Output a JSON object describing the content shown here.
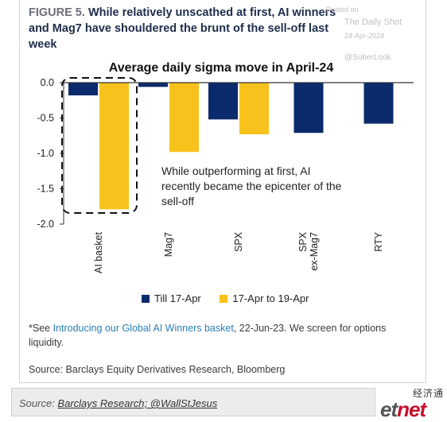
{
  "figure": {
    "label": "FIGURE 5.",
    "title": "While relatively unscathed at first, AI winners and Mag7 have shouldered the brunt of the sell-off last week"
  },
  "watermarks": [
    "Posted on",
    "The Daily Shot",
    "24-Apr-2024",
    "@SoberLook"
  ],
  "chart_data": {
    "type": "bar",
    "title": "Average daily sigma move in April-24",
    "categories": [
      "AI basket",
      "Mag7",
      "SPX",
      "SPX ex-Mag7",
      "RTY"
    ],
    "category_lines": [
      [
        "AI basket"
      ],
      [
        "Mag7"
      ],
      [
        "SPX"
      ],
      [
        "SPX",
        "ex-Mag7"
      ],
      [
        "RTY"
      ]
    ],
    "series": [
      {
        "name": "Till 17-Apr",
        "color": "#0b2a6b",
        "values": [
          -0.18,
          -0.06,
          -0.52,
          -0.71,
          -0.58
        ]
      },
      {
        "name": "17-Apr to 19-Apr",
        "color": "#f7c21b",
        "values": [
          -1.79,
          -0.98,
          -0.73,
          null,
          null
        ]
      }
    ],
    "ylim": [
      -2.0,
      0.0
    ],
    "yticks": [
      0.0,
      -0.5,
      -1.0,
      -1.5,
      -2.0
    ],
    "ytick_labels": [
      "0.0",
      "-0.5",
      "-1.0",
      "-1.5",
      "-2.0"
    ],
    "annotation": [
      "While outperforming at first, AI",
      "recently became the epicenter of the",
      "sell-off"
    ],
    "highlight_category": "AI basket",
    "legend_position": "bottom",
    "grid": false
  },
  "footnote": {
    "prefix": "*See ",
    "link": "Introducing our Global AI Winners basket",
    "suffix": ", 22-Jun-23. We screen for options liquidity."
  },
  "source_inner": "Source: Barclays Equity Derivatives Research, Bloomberg",
  "source_bar": {
    "label": "Source: ",
    "link": "Barclays Research; @WallStJesus"
  },
  "brand": {
    "chinese": "经济通",
    "logo_e": "et",
    "logo_rest": "net"
  }
}
